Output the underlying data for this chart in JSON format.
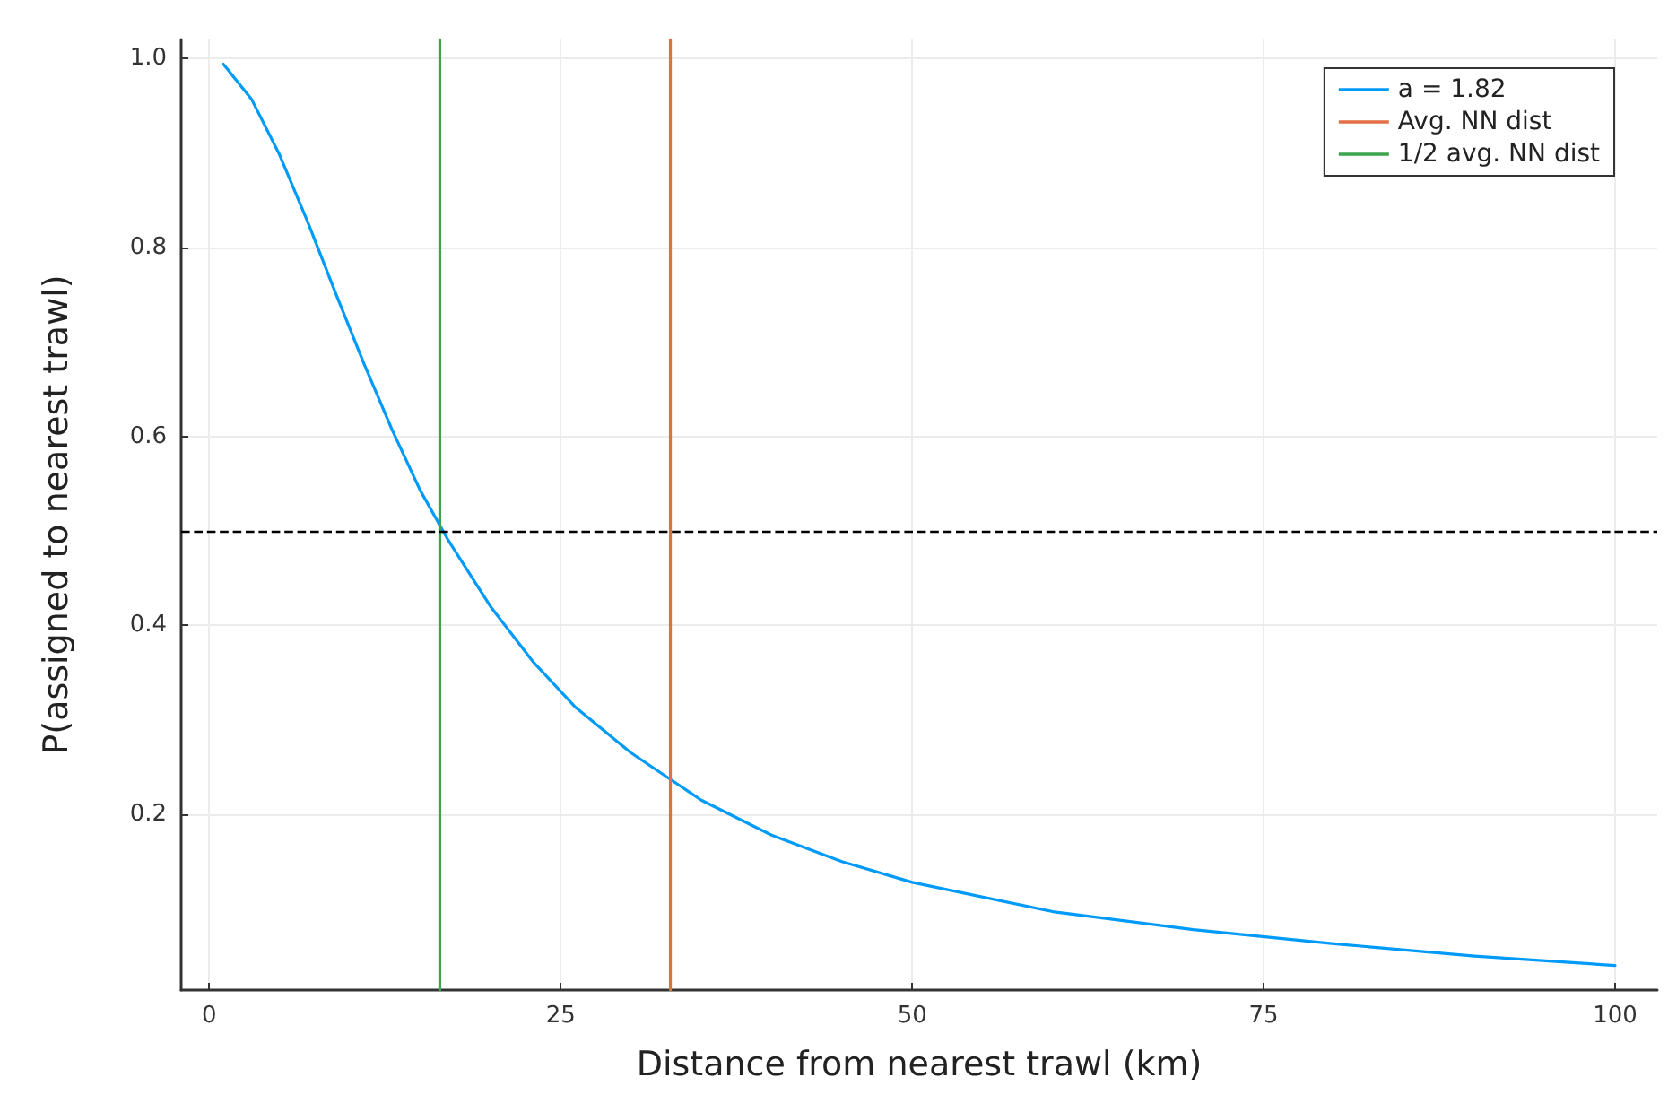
{
  "chart_data": {
    "type": "line",
    "xlabel": "Distance from nearest trawl (km)",
    "ylabel": "P(assigned to nearest trawl)",
    "xlim": [
      -2,
      103
    ],
    "xticks": [
      0,
      25,
      50,
      75,
      100
    ],
    "ylim": [
      0.014,
      1.02
    ],
    "yticks": [
      {
        "value": 0.2,
        "label": "0.2"
      },
      {
        "value": 0.4,
        "label": "0.4"
      },
      {
        "value": 0.6,
        "label": "0.6"
      },
      {
        "value": 0.8,
        "label": "0.8"
      },
      {
        "value": 1,
        "label": "1.0"
      }
    ],
    "series": [
      {
        "name": "a = 1.82",
        "color": "#009af9",
        "x": [
          1,
          3,
          5,
          7,
          9,
          11,
          13,
          15,
          17,
          20,
          23,
          26,
          30,
          35,
          40,
          45,
          50,
          60,
          70,
          80,
          90,
          100
        ],
        "values": [
          0.994,
          0.957,
          0.898,
          0.827,
          0.751,
          0.677,
          0.607,
          0.543,
          0.49,
          0.42,
          0.362,
          0.314,
          0.265,
          0.215,
          0.178,
          0.15,
          0.128,
          0.097,
          0.078,
          0.063,
          0.05,
          0.04
        ]
      },
      {
        "name": "Avg. NN dist",
        "color": "#e26f46",
        "x": [
          32.8,
          32.8
        ],
        "values": [
          0.014,
          1.02
        ]
      },
      {
        "name": "1/2 avg. NN dist",
        "color": "#3da44d",
        "x": [
          16.4,
          16.4
        ],
        "values": [
          0.014,
          1.02
        ]
      }
    ],
    "ref_lines": [
      {
        "axis": "y",
        "value": 0.5,
        "color": "#000000",
        "line_style": "dashed"
      }
    ],
    "grid": true,
    "legend": "top right",
    "marker": "none",
    "line_style": "solid"
  }
}
